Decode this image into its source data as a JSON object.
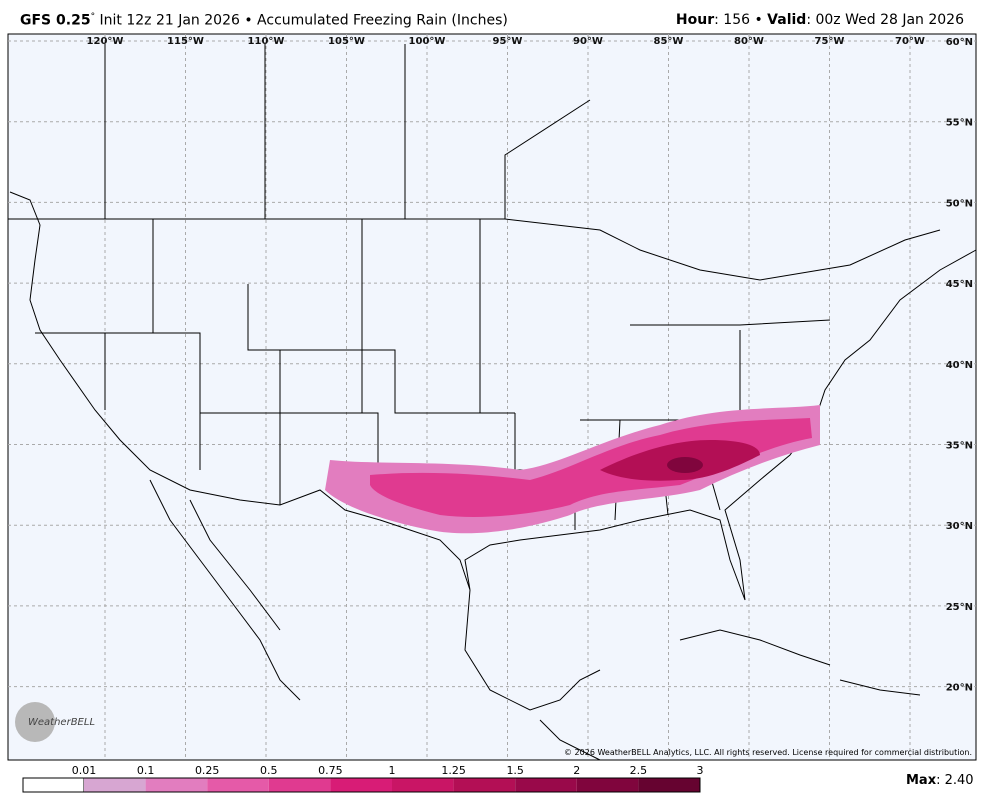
{
  "header": {
    "model": "GFS 0.25",
    "degree": "°",
    "title": "Init 12z 21 Jan 2026 • Accumulated Freezing Rain (Inches)",
    "hour_label": "Hour",
    "hour_value": ": 156 • ",
    "valid_label": "Valid",
    "valid_value": ": 00z Wed 28 Jan 2026"
  },
  "map": {
    "longitude_labels": [
      "120°W",
      "115°W",
      "110°W",
      "105°W",
      "100°W",
      "95°W",
      "90°W",
      "85°W",
      "80°W",
      "75°W",
      "70°W"
    ],
    "latitude_labels": [
      "60°N",
      "55°N",
      "50°N",
      "45°N",
      "40°N",
      "35°N",
      "30°N",
      "25°N",
      "20°N"
    ],
    "copyright": "© 2026 WeatherBELL Analytics, LLC. All rights reserved. License required for commercial distribution.",
    "logo": "WeatherBELL"
  },
  "colorbar": {
    "labels": [
      "0.01",
      "0.1",
      "0.25",
      "0.5",
      "0.75",
      "1",
      "1.25",
      "1.5",
      "2",
      "2.5",
      "3"
    ]
  },
  "footer": {
    "max_label": "Max",
    "max_value": ": 2.40"
  }
}
